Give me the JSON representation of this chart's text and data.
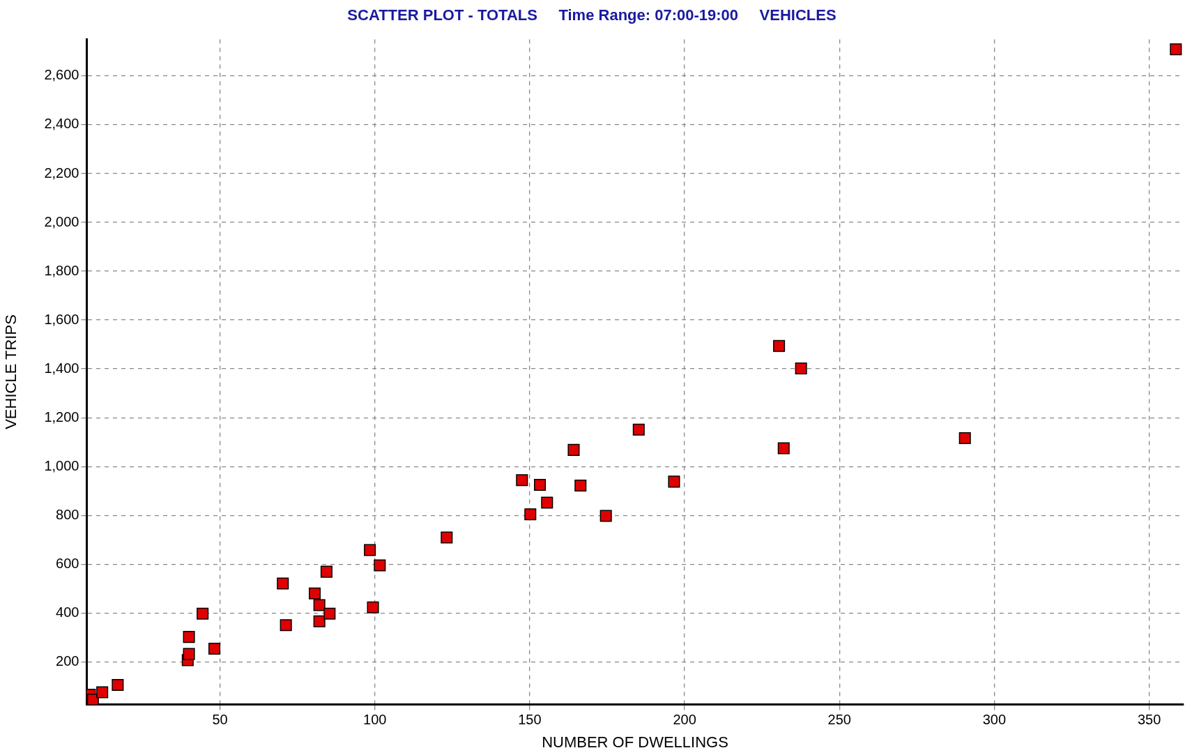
{
  "chart_data": {
    "type": "scatter",
    "title": "SCATTER PLOT - TOTALS     Time Range: 07:00-19:00     VEHICLES",
    "xlabel": "NUMBER OF DWELLINGS",
    "ylabel": "VEHICLE TRIPS",
    "x": [
      8,
      9,
      12,
      17,
      39.6,
      40,
      40,
      44.4,
      48.2,
      70.3,
      71.3,
      80.6,
      82.1,
      82.1,
      84.4,
      85.4,
      98.4,
      99.4,
      101.6,
      123.2,
      147.5,
      150.2,
      153.3,
      155.6,
      164.2,
      166.4,
      174.6,
      185.2,
      196.6,
      230.5,
      232,
      237.6,
      290.5,
      358.6
    ],
    "series": [
      {
        "color": "#e00000",
        "values": [
          65,
          45,
          75,
          105,
          207,
          232,
          302,
          397,
          254,
          521,
          350,
          480,
          432,
          366,
          569,
          397,
          658,
          423,
          595,
          709,
          944,
          804,
          925,
          852,
          1068,
          922,
          798,
          1151,
          938,
          1494,
          1075,
          1402,
          1116,
          2709
        ]
      }
    ],
    "xlim": [
      7,
      361
    ],
    "ylim": [
      25,
      2750
    ],
    "xticks": [
      50,
      100,
      150,
      200,
      250,
      300,
      350
    ],
    "yticks": [
      200,
      400,
      600,
      800,
      {
        "value": 1000,
        "label": "1,000"
      },
      {
        "value": 1200,
        "label": "1,200"
      },
      {
        "value": 1400,
        "label": "1,400"
      },
      {
        "value": 1600,
        "label": "1,600"
      },
      {
        "value": 1800,
        "label": "1,800"
      },
      {
        "value": 2000,
        "label": "2,000"
      },
      {
        "value": 2200,
        "label": "2,200"
      },
      {
        "value": 2400,
        "label": "2,400"
      },
      {
        "value": 2600,
        "label": "2,600"
      }
    ],
    "grid": true,
    "legend": false,
    "marker": "square"
  }
}
